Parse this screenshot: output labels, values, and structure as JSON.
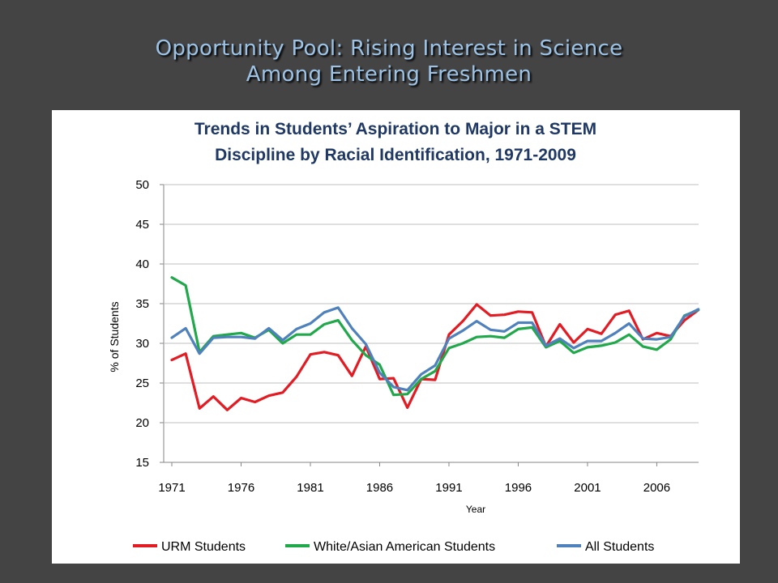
{
  "slide": {
    "title_line1": "Opportunity Pool: Rising Interest in Science",
    "title_line2": "Among Entering Freshmen"
  },
  "colors": {
    "background": "#444444",
    "title": "#9cc3e6",
    "chart_title": "#1f3864",
    "urm": "#e31b23",
    "white_asian": "#20a84b",
    "all": "#4f81bd"
  },
  "chart_data": {
    "type": "line",
    "title_line1": "Trends in Students’ Aspiration to Major in a STEM",
    "title_line2": "Discipline by Racial Identification, 1971-2009",
    "xlabel": "Year",
    "ylabel": "% of Students",
    "ylim": [
      15,
      50
    ],
    "yticks": [
      15,
      20,
      25,
      30,
      35,
      40,
      45,
      50
    ],
    "xlim": [
      1971,
      2009
    ],
    "xticks": [
      "1971",
      "1976",
      "1981",
      "1986",
      "1991",
      "1996",
      "2001",
      "2006"
    ],
    "grid": true,
    "legend_position": "bottom",
    "x": [
      1971,
      1972,
      1973,
      1974,
      1975,
      1976,
      1977,
      1978,
      1979,
      1980,
      1981,
      1982,
      1983,
      1984,
      1985,
      1986,
      1987,
      1988,
      1989,
      1990,
      1991,
      1992,
      1993,
      1994,
      1995,
      1996,
      1997,
      1998,
      1999,
      2000,
      2001,
      2002,
      2003,
      2004,
      2005,
      2006,
      2007,
      2008,
      2009
    ],
    "series": [
      {
        "name": "URM Students",
        "color": "#e31b23",
        "values": [
          27.9,
          28.7,
          21.8,
          23.3,
          21.6,
          23.1,
          22.6,
          23.4,
          23.8,
          25.8,
          28.6,
          28.9,
          28.5,
          25.9,
          29.6,
          25.5,
          25.6,
          21.9,
          25.5,
          25.4,
          31.1,
          32.8,
          34.9,
          33.5,
          33.6,
          34.0,
          33.9,
          29.6,
          32.4,
          30.1,
          31.8,
          31.2,
          33.6,
          34.1,
          30.5,
          31.3,
          30.9,
          32.9,
          34.2
        ]
      },
      {
        "name": "White/Asian American Students",
        "color": "#20a84b",
        "values": [
          38.3,
          37.3,
          28.9,
          30.9,
          31.1,
          31.3,
          30.7,
          31.7,
          30.0,
          31.1,
          31.1,
          32.4,
          32.9,
          30.4,
          28.5,
          27.3,
          23.5,
          23.6,
          25.5,
          26.5,
          29.4,
          30.0,
          30.8,
          30.9,
          30.7,
          31.8,
          32.0,
          29.5,
          30.3,
          28.8,
          29.5,
          29.7,
          30.1,
          31.1,
          29.6,
          29.2,
          30.5,
          33.5,
          34.2
        ]
      },
      {
        "name": "All Students",
        "color": "#4f81bd",
        "values": [
          30.7,
          31.9,
          28.7,
          30.7,
          30.8,
          30.8,
          30.6,
          31.9,
          30.4,
          31.8,
          32.5,
          33.9,
          34.5,
          31.9,
          29.9,
          26.3,
          24.5,
          24.1,
          26.1,
          27.2,
          30.6,
          31.6,
          32.8,
          31.7,
          31.5,
          32.6,
          32.6,
          29.7,
          30.6,
          29.4,
          30.3,
          30.3,
          31.3,
          32.5,
          30.6,
          30.5,
          30.8,
          33.4,
          34.3
        ]
      }
    ]
  }
}
